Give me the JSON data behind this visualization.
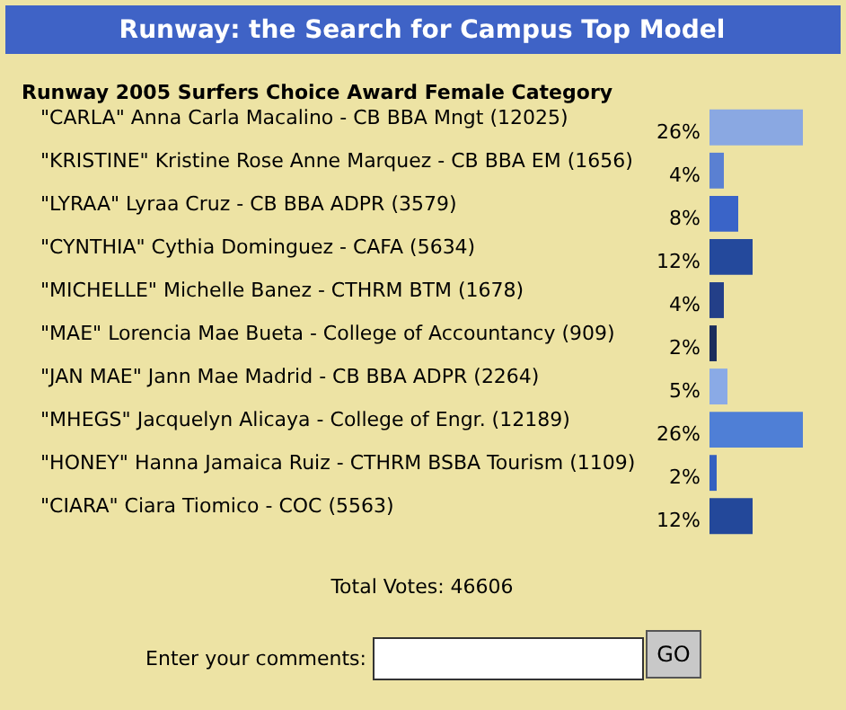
{
  "chart_data": {
    "type": "bar",
    "orientation": "horizontal",
    "title": "Runway: the Search for Campus Top Model",
    "subtitle": "Runway 2005 Surfers Choice Award Female Category",
    "categories": [
      "\"CARLA\" Anna Carla Macalino - CB BBA Mngt (12025)",
      "\"KRISTINE\" Kristine Rose Anne Marquez - CB BBA EM (1656)",
      "\"LYRAA\" Lyraa Cruz - CB BBA ADPR (3579)",
      "\"CYNTHIA\" Cythia Dominguez - CAFA (5634)",
      "\"MICHELLE\" Michelle Banez - CTHRM BTM (1678)",
      "\"MAE\" Lorencia Mae Bueta - College of Accountancy (909)",
      "\"JAN MAE\" Jann Mae Madrid - CB BBA ADPR (2264)",
      "\"MHEGS\" Jacquelyn Alicaya - College of Engr. (12189)",
      "\"HONEY\" Hanna Jamaica Ruiz - CTHRM BSBA Tourism (1109)",
      "\"CIARA\" Ciara Tiomico - COC (5563)"
    ],
    "values": [
      26,
      4,
      8,
      12,
      4,
      2,
      5,
      26,
      2,
      12
    ],
    "value_labels": [
      "26%",
      "4%",
      "8%",
      "12%",
      "4%",
      "2%",
      "5%",
      "26%",
      "2%",
      "12%"
    ],
    "colors": [
      "#8aa8e2",
      "#5a80d2",
      "#3a64c8",
      "#24499c",
      "#233f88",
      "#1b2d5c",
      "#8aaae6",
      "#4f7fd6",
      "#3460c0",
      "#23489a"
    ],
    "annotations": [
      "Total Votes: 46606",
      "Enter your comments:",
      "GO"
    ]
  }
}
